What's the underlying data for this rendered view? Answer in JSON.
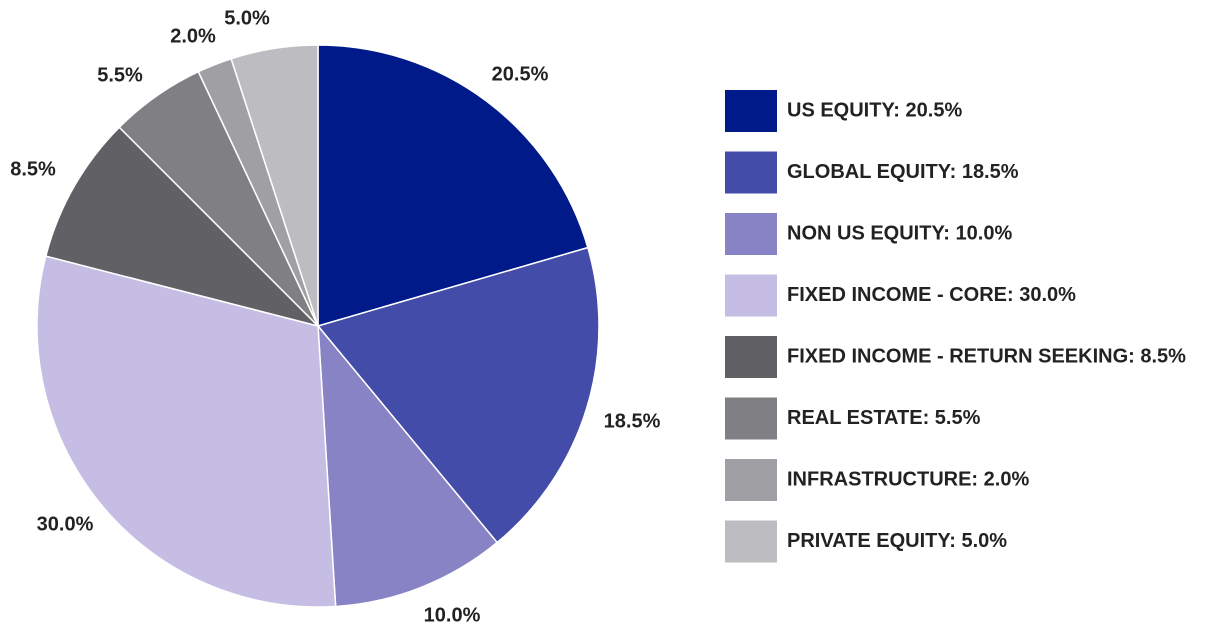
{
  "chart_data": {
    "type": "pie",
    "categories": [
      "US EQUITY: 20.5%",
      "GLOBAL EQUITY: 18.5%",
      "NON US EQUITY: 10.0%",
      "FIXED INCOME - CORE: 30.0%",
      "FIXED INCOME - RETURN SEEKING: 8.5%",
      "REAL ESTATE: 5.5%",
      "INFRASTRUCTURE: 2.0%",
      "PRIVATE EQUITY: 5.0%"
    ],
    "values": [
      20.5,
      18.5,
      10.0,
      30.0,
      8.5,
      5.5,
      2.0,
      5.0
    ],
    "value_labels": [
      "20.5%",
      "18.5%",
      "10.0%",
      "30.0%",
      "8.5%",
      "5.5%",
      "2.0%",
      "5.0%"
    ],
    "colors": [
      "#001a8a",
      "#434ca8",
      "#8883c4",
      "#c5bde3",
      "#616165",
      "#808084",
      "#a0a0a4",
      "#bdbdc1"
    ],
    "legend": "right"
  }
}
